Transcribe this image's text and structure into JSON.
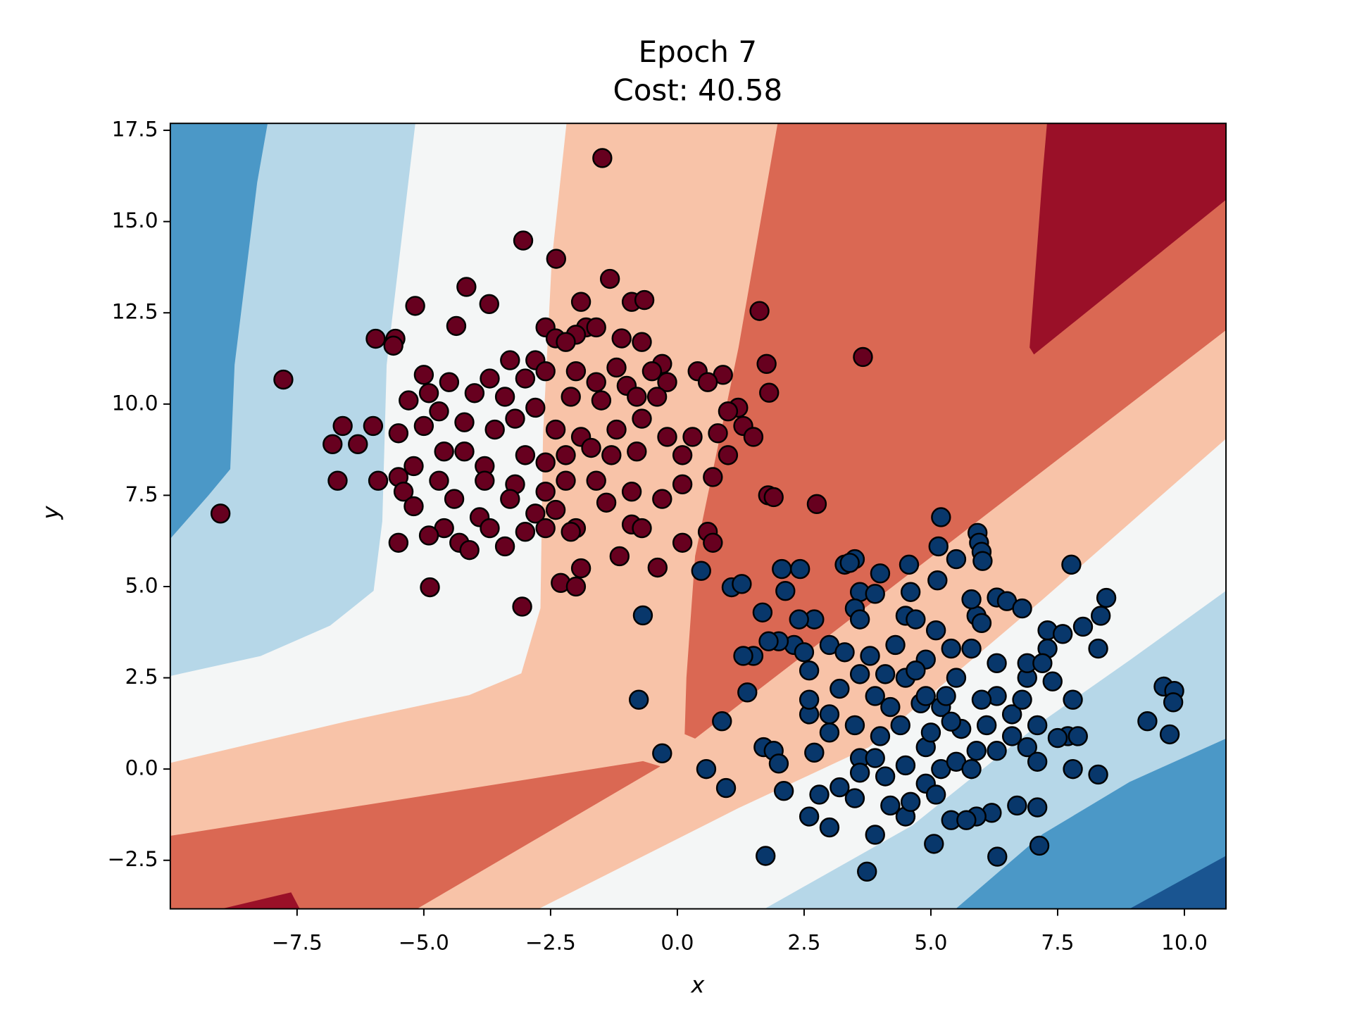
{
  "chart_data": {
    "type": "scatter",
    "title": "Epoch 7",
    "subtitle": "Cost: 40.58",
    "x_label": "x",
    "y_label": "y",
    "xlim": [
      -10,
      10.82
    ],
    "ylim": [
      -3.83,
      17.69
    ],
    "xticks": [
      {
        "value": -7.5,
        "label": "−7.5"
      },
      {
        "value": -5,
        "label": "−5.0"
      },
      {
        "value": -2.5,
        "label": "−2.5"
      },
      {
        "value": 0,
        "label": "0.0"
      },
      2.5,
      {
        "value": 5,
        "label": "5.0"
      },
      7.5,
      {
        "value": 10,
        "label": "10.0"
      }
    ],
    "yticks": [
      {
        "value": -2.5,
        "label": "−2.5"
      },
      {
        "value": 0,
        "label": "0.0"
      },
      2.5,
      {
        "value": 5,
        "label": "5.0"
      },
      7.5,
      {
        "value": 10,
        "label": "10.0"
      },
      12.5,
      {
        "value": 15,
        "label": "15.0"
      },
      17.5
    ],
    "edgecolor": "#000000",
    "series": [
      {
        "color": "#67001f",
        "x": [
          -1.48,
          -3.04,
          -2.39,
          -4.16,
          -1.33,
          -5.17,
          -3.71,
          1.62,
          -4.36,
          -5.95,
          -5.56,
          -5.6,
          3.66,
          -7.77,
          1.76,
          1.81,
          -9.01,
          1.79,
          1.9,
          2.75,
          -4.88,
          -3.06,
          -0.39,
          -1.14,
          -1.9,
          -0.9,
          -0.65,
          -2.6,
          -1.8,
          -1.6,
          -2.0,
          -2.4,
          -1.1,
          -0.7,
          -3.3,
          -2.8,
          -2.2,
          -1.2,
          -0.3,
          0.4,
          0.9,
          -3.7,
          -3.0,
          -2.6,
          -2.0,
          -1.6,
          -1.0,
          -0.5,
          -0.2,
          0.6,
          -5.0,
          -4.5,
          -4.0,
          -4.9,
          -5.3,
          -3.4,
          -2.1,
          -1.5,
          -0.8,
          -0.4,
          1.2,
          1.0,
          -6.0,
          -6.6,
          -5.5,
          -5.0,
          -4.7,
          -4.2,
          -3.6,
          -3.2,
          -2.8,
          -2.4,
          -1.9,
          -1.2,
          -0.7,
          -0.2,
          0.3,
          0.8,
          1.3,
          1.5,
          -6.8,
          -6.3,
          -5.2,
          -4.6,
          -4.2,
          -3.8,
          -3.0,
          -2.6,
          -2.2,
          -1.7,
          -1.3,
          -0.8,
          0.1,
          1.0,
          -6.7,
          -5.9,
          -5.5,
          -5.4,
          -4.7,
          -4.4,
          -3.8,
          -3.2,
          -2.6,
          -2.2,
          -1.6,
          -0.9,
          -0.3,
          0.1,
          0.7,
          -5.2,
          -4.6,
          -3.9,
          -3.3,
          -2.8,
          -2.4,
          -2.0,
          -1.4,
          -0.9,
          -5.5,
          -4.9,
          -4.3,
          -4.1,
          -3.4,
          -3.0,
          -2.6,
          -2.1,
          -0.7,
          0.6,
          0.1,
          0.7,
          -2.3,
          -2.0,
          -1.9,
          -3.7
        ],
        "values": [
          16.74,
          14.48,
          13.98,
          13.21,
          13.43,
          12.69,
          12.74,
          12.55,
          12.14,
          11.79,
          11.79,
          11.6,
          11.29,
          10.67,
          11.1,
          10.31,
          7.0,
          7.5,
          7.45,
          7.26,
          4.98,
          4.45,
          5.52,
          5.83,
          12.8,
          12.8,
          12.85,
          12.1,
          12.1,
          12.1,
          11.9,
          11.8,
          11.8,
          11.7,
          11.2,
          11.2,
          11.7,
          11.0,
          11.1,
          10.9,
          10.8,
          10.7,
          10.7,
          10.9,
          10.9,
          10.6,
          10.5,
          10.9,
          10.6,
          10.6,
          10.8,
          10.6,
          10.3,
          10.3,
          10.1,
          10.2,
          10.2,
          10.1,
          10.2,
          10.2,
          9.9,
          9.8,
          9.4,
          9.4,
          9.2,
          9.4,
          9.8,
          9.5,
          9.3,
          9.6,
          9.9,
          9.3,
          9.1,
          9.3,
          9.6,
          9.1,
          9.1,
          9.2,
          9.4,
          9.1,
          8.9,
          8.9,
          8.3,
          8.7,
          8.7,
          8.3,
          8.6,
          8.4,
          8.6,
          8.8,
          8.6,
          8.7,
          8.6,
          8.6,
          7.9,
          7.9,
          8.0,
          7.6,
          7.9,
          7.4,
          7.9,
          7.8,
          7.6,
          7.9,
          7.9,
          7.6,
          7.4,
          7.8,
          8.0,
          7.2,
          6.6,
          6.9,
          7.4,
          7.0,
          7.1,
          6.6,
          7.3,
          6.7,
          6.2,
          6.4,
          6.2,
          6.0,
          6.1,
          6.5,
          6.6,
          6.5,
          6.6,
          6.5,
          6.2,
          6.2,
          5.1,
          5.0,
          5.5,
          6.6
        ]
      },
      {
        "color": "#08376b",
        "x": [
          5.2,
          5.92,
          5.95,
          6.0,
          6.02,
          5.15,
          7.77,
          8.46,
          8.35,
          9.59,
          9.8,
          9.27,
          9.71,
          9.78,
          3.74,
          1.74,
          6.31,
          7.14,
          5.06,
          -0.68,
          -0.76,
          -0.3,
          0.57,
          0.96,
          0.88,
          1.38,
          0.47,
          1.07,
          1.27,
          1.68,
          2.06,
          2.42,
          2.13,
          5.13,
          4.57,
          4.0,
          3.3,
          3.5,
          3.4,
          3.6,
          3.9,
          4.6,
          5.5,
          5.9,
          5.8,
          6.0,
          6.3,
          6.5,
          6.8,
          7.3,
          7.6,
          8.0,
          8.3,
          7.3,
          7.4,
          6.9,
          7.8,
          7.7,
          7.5,
          7.9,
          7.8,
          8.3,
          7.1,
          6.9,
          7.1,
          6.7,
          7.1,
          6.2,
          5.9,
          5.4,
          4.5,
          4.2,
          3.9,
          2.6,
          3.0,
          2.8,
          3.2,
          3.5,
          2.1,
          1.7,
          1.9,
          2.0,
          2.7,
          3.6,
          3.9,
          4.1,
          4.5,
          5.2,
          5.5,
          5.8,
          6.3,
          6.6,
          6.9,
          6.3,
          6.0,
          5.6,
          5.2,
          4.8,
          4.4,
          4.0,
          3.5,
          3.0,
          2.6,
          2.6,
          3.2,
          3.6,
          4.1,
          4.5,
          4.9,
          5.5,
          5.8,
          6.3,
          4.3,
          4.9,
          5.1,
          5.4,
          4.5,
          4.7,
          3.5,
          3.6,
          3.0,
          2.7,
          2.4,
          2.3,
          2.0,
          1.8,
          1.5,
          1.3,
          2.5,
          2.6,
          3.3,
          3.8,
          4.7,
          5.3,
          6.6,
          6.1,
          5.9,
          4.9,
          4.6,
          5.1,
          3.6,
          3.0,
          5.7,
          4.9,
          4.2,
          3.9,
          5.0,
          5.4,
          6.8,
          7.2
        ],
        "values": [
          6.9,
          6.47,
          6.2,
          5.95,
          5.7,
          6.1,
          5.6,
          4.69,
          4.2,
          2.26,
          2.14,
          1.31,
          0.95,
          1.83,
          -2.81,
          -2.38,
          -2.4,
          -2.1,
          -2.05,
          4.21,
          1.9,
          0.43,
          0,
          -0.52,
          1.31,
          2.1,
          5.43,
          4.98,
          5.07,
          4.29,
          5.48,
          5.48,
          4.88,
          5.17,
          5.6,
          5.36,
          5.6,
          5.75,
          5.65,
          4.85,
          4.8,
          4.85,
          5.75,
          4.2,
          4.65,
          4.0,
          4.7,
          4.6,
          4.4,
          3.8,
          3.7,
          3.9,
          3.3,
          3.3,
          2.4,
          2.5,
          1.9,
          0.9,
          0.85,
          0.9,
          0.0,
          -0.15,
          1.2,
          0.6,
          0.2,
          -1.0,
          -1.05,
          -1.2,
          -1.3,
          -1.4,
          -1.3,
          -1.0,
          -1.8,
          -1.3,
          -1.6,
          -0.7,
          -0.5,
          -0.8,
          -0.6,
          0.6,
          0.5,
          0.15,
          0.45,
          0.3,
          0.3,
          -0.2,
          0.1,
          0.0,
          0.2,
          0.0,
          0.5,
          0.9,
          2.9,
          2.0,
          1.9,
          1.1,
          1.7,
          1.8,
          1.2,
          0.9,
          1.2,
          1.5,
          1.5,
          1.9,
          2.2,
          2.6,
          2.6,
          2.5,
          2.0,
          2.5,
          3.3,
          2.9,
          3.4,
          3.0,
          3.8,
          3.3,
          4.2,
          4.1,
          4.4,
          4.1,
          3.4,
          4.1,
          4.1,
          3.4,
          3.5,
          3.5,
          3.1,
          3.1,
          3.2,
          2.7,
          3.2,
          3.1,
          2.7,
          2.0,
          1.5,
          1.2,
          0.5,
          -0.4,
          -0.9,
          -0.7,
          -0.1,
          1.0,
          -1.4,
          0.6,
          1.7,
          2.0,
          1.0,
          1.3,
          1.9,
          2.9
        ]
      }
    ]
  }
}
